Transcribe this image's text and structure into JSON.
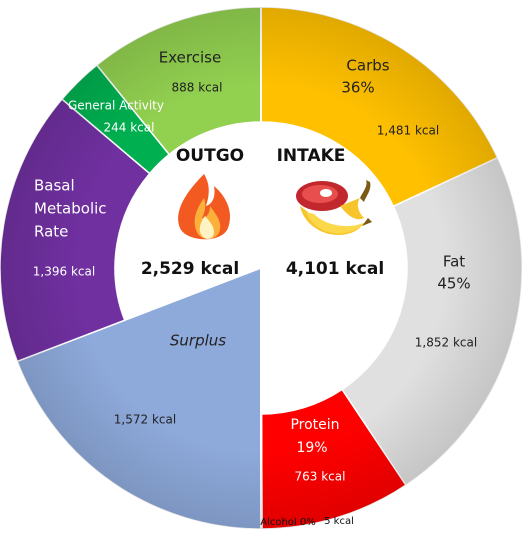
{
  "chart_data": {
    "type": "pie",
    "center": {
      "outgo": {
        "title": "OUTGO",
        "total": "2,529 kcal"
      },
      "intake": {
        "title": "INTAKE",
        "total": "4,101 kcal"
      },
      "surplus_label": "Surplus"
    },
    "outgo_segments": [
      {
        "id": "exercise",
        "label": "Exercise",
        "value_label": "888 kcal",
        "value": 888,
        "color": "#92d050"
      },
      {
        "id": "general-activity",
        "label": "General Activity",
        "value_label": "244 kcal",
        "value": 244,
        "color": "#00b050"
      },
      {
        "id": "bmr",
        "label_lines": [
          "Basal",
          "Metabolic",
          "Rate"
        ],
        "value_label": "1,396 kcal",
        "value": 1396,
        "color": "#7030a0"
      },
      {
        "id": "surplus",
        "label": "Surplus",
        "value_label": "1,572 kcal",
        "value": 1572,
        "color": "#8eaadb"
      }
    ],
    "intake_segments": [
      {
        "id": "carbs",
        "label": "Carbs",
        "pct_label": "36%",
        "value_label": "1,481 kcal",
        "value": 1481,
        "color": "#ffc000"
      },
      {
        "id": "fat",
        "label": "Fat",
        "pct_label": "45%",
        "value_label": "1,852 kcal",
        "value": 1852,
        "color": "#e0e0e0"
      },
      {
        "id": "protein",
        "label": "Protein",
        "pct_label": "19%",
        "value_label": "763 kcal",
        "value": 763,
        "color": "#ff0000"
      },
      {
        "id": "alcohol",
        "label": "Alcohol 0%",
        "value_label": "5 kcal",
        "value": 5,
        "color": "#7f7f7f"
      }
    ]
  }
}
